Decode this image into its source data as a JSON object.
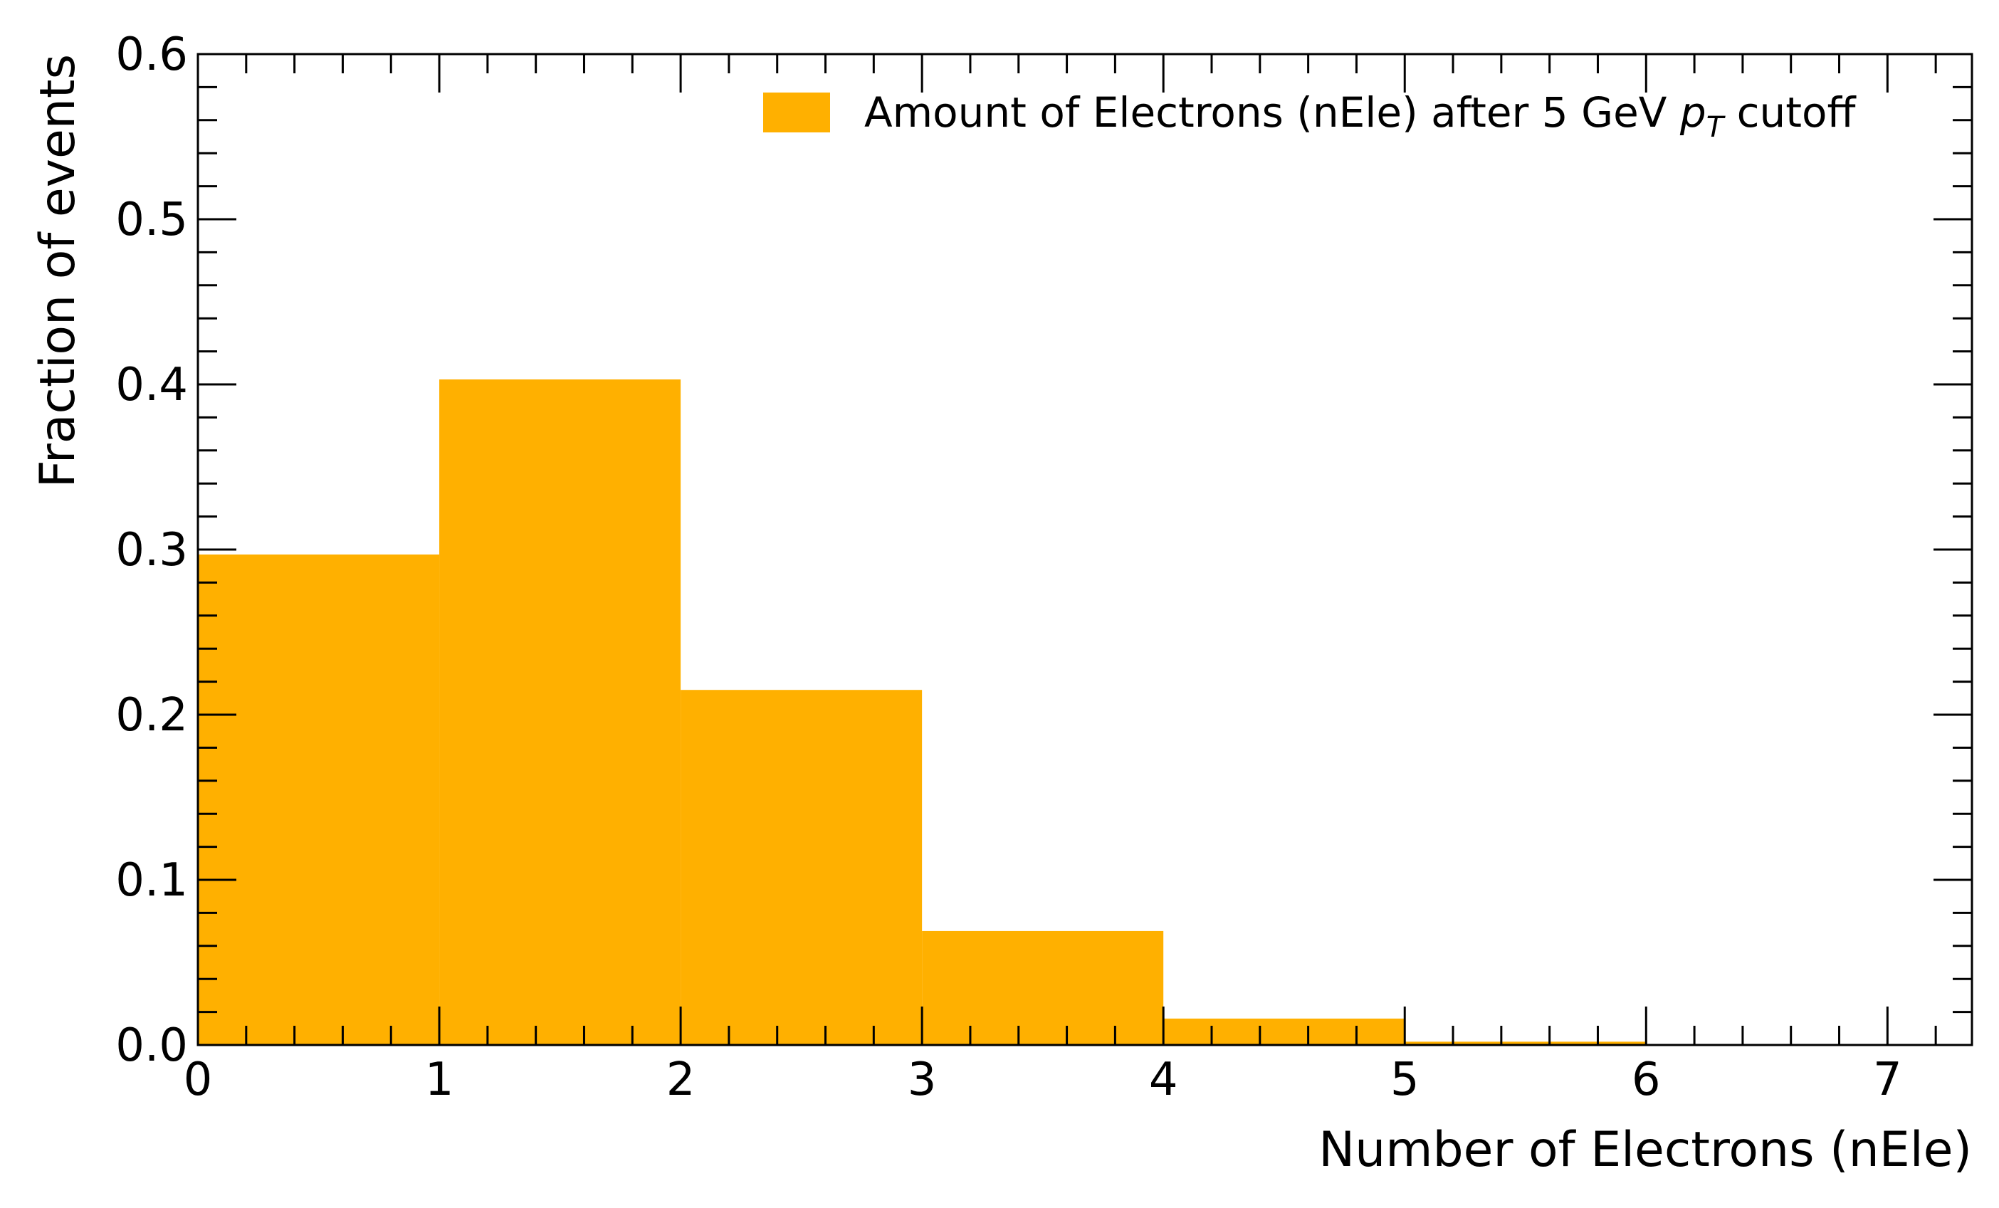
{
  "chart_data": {
    "type": "bar",
    "histogram": true,
    "bin_edges": [
      0,
      1,
      2,
      3,
      4,
      5,
      6,
      7
    ],
    "values": [
      0.297,
      0.403,
      0.215,
      0.069,
      0.016,
      0.002,
      0.0
    ],
    "xlabel": "Number of Electrons (nEle)",
    "ylabel": "Fraction of events",
    "xlim": [
      0,
      7.35
    ],
    "ylim": [
      0,
      0.6
    ],
    "x_ticks": [
      0,
      1,
      2,
      3,
      4,
      5,
      6,
      7
    ],
    "x_tick_labels": [
      "0",
      "1",
      "2",
      "3",
      "4",
      "5",
      "6",
      "7"
    ],
    "y_ticks": [
      0,
      0.1,
      0.2,
      0.3,
      0.4,
      0.5,
      0.6
    ],
    "y_tick_labels": [
      "0.0",
      "0.1",
      "0.2",
      "0.3",
      "0.4",
      "0.5",
      "0.6"
    ],
    "legend": {
      "placement": "top-right",
      "label_main": "Amount of Electrons (nEle)  after 5 GeV ",
      "label_p": "p",
      "label_sub": "T",
      "label_tail": " cutoff"
    },
    "grid": false,
    "colors": {
      "bar": "#ffb000",
      "axis": "#000000"
    }
  }
}
